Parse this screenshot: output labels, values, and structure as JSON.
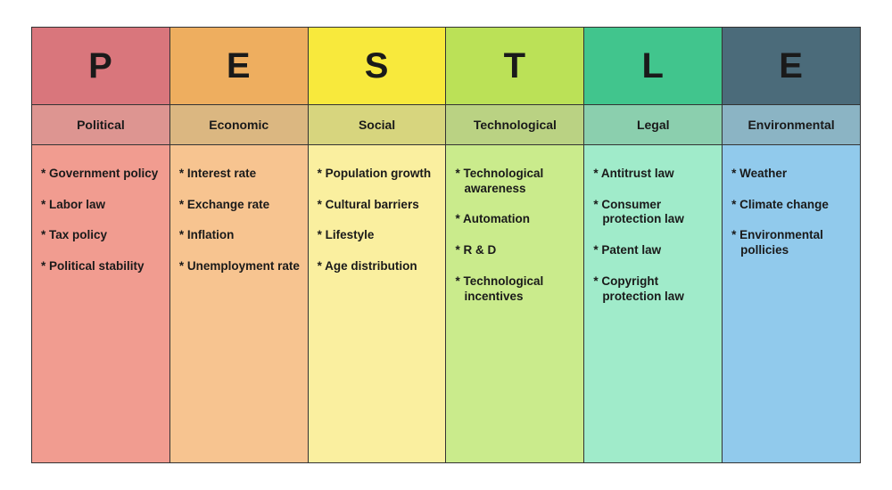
{
  "pestle": {
    "type": "infographic-table",
    "border_color": "#333333",
    "background_color": "#ffffff",
    "letter_fontsize": 40,
    "label_fontsize": 14,
    "item_fontsize": 13.5,
    "columns": [
      {
        "letter": "P",
        "label": "Political",
        "items": [
          "Government policy",
          "Labor law",
          "Tax policy",
          "Political stability"
        ],
        "letter_bg": "#d9767c",
        "label_bg": "#dd9591",
        "items_bg": "#f19c90",
        "text_color": "#1a1a1a"
      },
      {
        "letter": "E",
        "label": "Economic",
        "items": [
          "Interest rate",
          "Exchange rate",
          "Inflation",
          "Unemployment rate"
        ],
        "letter_bg": "#eeae5f",
        "label_bg": "#dbb781",
        "items_bg": "#f7c490",
        "text_color": "#1a1a1a"
      },
      {
        "letter": "S",
        "label": "Social",
        "items": [
          "Population growth",
          "Cultural barriers",
          "Lifestyle",
          "Age distribution"
        ],
        "letter_bg": "#f8e93c",
        "label_bg": "#d7d57e",
        "items_bg": "#faef9f",
        "text_color": "#1a1a1a"
      },
      {
        "letter": "T",
        "label": "Technological",
        "items": [
          "Technological awareness",
          "Automation",
          "R & D",
          "Technological incentives"
        ],
        "letter_bg": "#bbe157",
        "label_bg": "#bad283",
        "items_bg": "#caeb8c",
        "text_color": "#1a1a1a"
      },
      {
        "letter": "L",
        "label": "Legal",
        "items": [
          "Antitrust law",
          "Consumer protection law",
          "Patent law",
          "Copyright protection law"
        ],
        "letter_bg": "#41c58d",
        "label_bg": "#8bcfae",
        "items_bg": "#a0ebca",
        "text_color": "#1a1a1a"
      },
      {
        "letter": "E",
        "label": "Environmental",
        "items": [
          "Weather",
          "Climate change",
          "Environmental pollicies"
        ],
        "letter_bg": "#4b6b7a",
        "label_bg": "#8bb4c4",
        "items_bg": "#91caec",
        "text_color": "#1a1a1a"
      }
    ]
  }
}
